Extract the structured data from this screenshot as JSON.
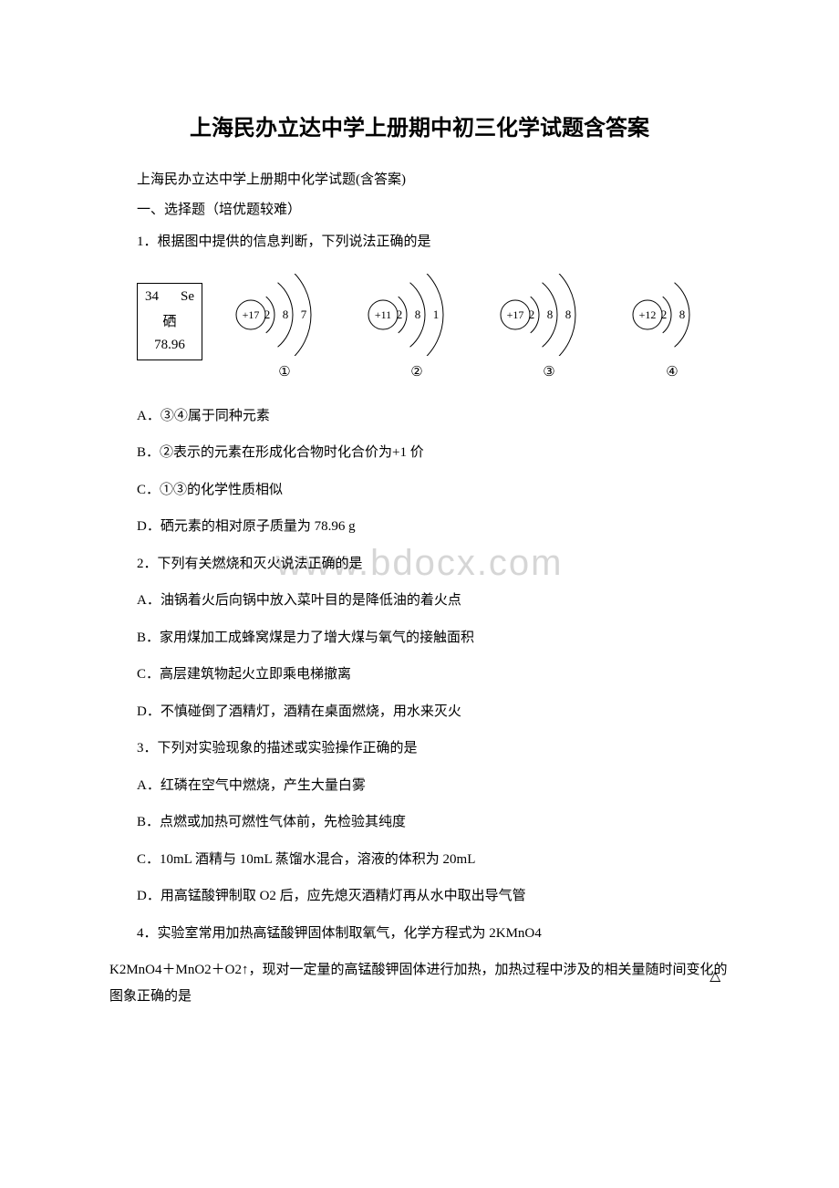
{
  "title": "上海民办立达中学上册期中初三化学试题含答案",
  "subtitle": "上海民办立达中学上册期中化学试题(含答案)",
  "section": "一、选择题（培优题较难）",
  "watermark": "www.bdocx.com",
  "element_box": {
    "number": "34",
    "symbol": "Se",
    "name": "硒",
    "mass": "78.96"
  },
  "atoms": [
    {
      "center": "+17",
      "shells": [
        "2",
        "8",
        "7"
      ],
      "label": "①",
      "shell_count": 3
    },
    {
      "center": "+11",
      "shells": [
        "2",
        "8",
        "1"
      ],
      "label": "②",
      "shell_count": 3
    },
    {
      "center": "+17",
      "shells": [
        "2",
        "8",
        "8"
      ],
      "label": "③",
      "shell_count": 3
    },
    {
      "center": "+12",
      "shells": [
        "2",
        "8"
      ],
      "label": "④",
      "shell_count": 2
    }
  ],
  "q1": {
    "stem": "1．根据图中提供的信息判断，下列说法正确的是",
    "A": "A．③④属于同种元素",
    "B": "B．②表示的元素在形成化合物时化合价为+1 价",
    "C": "C．①③的化学性质相似",
    "D": "D．硒元素的相对原子质量为 78.96 g"
  },
  "q2": {
    "stem": "2．下列有关燃烧和灭火说法正确的是",
    "A": "A．油锅着火后向锅中放入菜叶目的是降低油的着火点",
    "B": "B．家用煤加工成蜂窝煤是力了增大煤与氧气的接触面积",
    "C": "C．高层建筑物起火立即乘电梯撤离",
    "D": "D．不慎碰倒了酒精灯，酒精在桌面燃烧，用水来灭火"
  },
  "q3": {
    "stem": "3．下列对实验现象的描述或实验操作正确的是",
    "A": "A．红磷在空气中燃烧，产生大量白雾",
    "B": "B．点燃或加热可燃性气体前，先检验其纯度",
    "C": "C．10mL 酒精与 10mL 蒸馏水混合，溶液的体积为 20mL",
    "D": "D．用高锰酸钾制取 O2 后，应先熄灭酒精灯再从水中取出导气管"
  },
  "q4": {
    "line1": "4．实验室常用加热高锰酸钾固体制取氧气，化学方程式为 2KMnO4",
    "triangle": "△",
    "line2": "K2MnO4＋MnO2＋O2↑，现对一定量的高锰酸钾固体进行加热，加热过程中涉及的相关量随时间变化的图象正确的是"
  }
}
